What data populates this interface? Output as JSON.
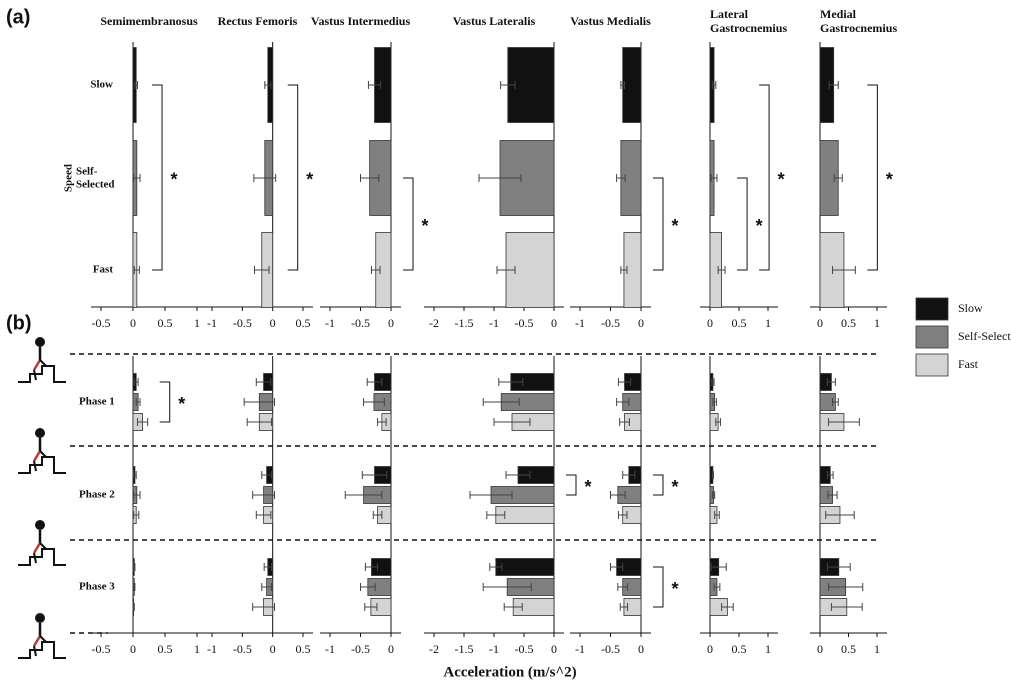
{
  "chart_data": {
    "type": "bar",
    "x_label": "Acceleration (m/s^2)",
    "series": [
      {
        "name": "Slow",
        "color": "#111111"
      },
      {
        "name": "Self-Selected",
        "color": "#808080"
      },
      {
        "name": "Fast",
        "color": "#d4d4d4"
      }
    ],
    "muscles": [
      {
        "name": "Semimembranosus",
        "xlim": [
          -0.5,
          1
        ],
        "xticks": [
          -0.5,
          0,
          0.5,
          1
        ]
      },
      {
        "name": "Rectus Femoris",
        "xlim": [
          -1,
          0.5
        ],
        "xticks": [
          -1,
          -0.5,
          0,
          0.5
        ]
      },
      {
        "name": "Vastus Intermedius",
        "xlim": [
          -1,
          0
        ],
        "xticks": [
          -1,
          -0.5,
          0
        ]
      },
      {
        "name": "Vastus Lateralis",
        "xlim": [
          -2,
          0
        ],
        "xticks": [
          -2,
          -1.5,
          -1,
          -0.5,
          0
        ]
      },
      {
        "name": "Vastus Medialis",
        "xlim": [
          -1,
          0
        ],
        "xticks": [
          -1,
          -0.5,
          0
        ]
      },
      {
        "name": "Lateral Gastrocnemius",
        "xlim": [
          0,
          1
        ],
        "xticks": [
          0,
          0.5,
          1
        ]
      },
      {
        "name": "Medial Gastrocnemius",
        "xlim": [
          0,
          1
        ],
        "xticks": [
          0,
          0.5,
          1
        ]
      }
    ],
    "panel_a": {
      "label": "(a)",
      "y_label": "Speed",
      "categories": [
        "Slow",
        "Self-Selected",
        "Fast"
      ],
      "values": [
        [
          0.05,
          0.06,
          0.06
        ],
        [
          -0.08,
          -0.13,
          -0.18
        ],
        [
          -0.27,
          -0.35,
          -0.25
        ],
        [
          -0.77,
          -0.9,
          -0.8
        ],
        [
          -0.3,
          -0.33,
          -0.28
        ],
        [
          0.07,
          0.07,
          0.2
        ],
        [
          0.24,
          0.32,
          0.42
        ]
      ],
      "errors": [
        [
          0.02,
          0.05,
          0.04
        ],
        [
          0.05,
          0.18,
          0.12
        ],
        [
          0.1,
          0.15,
          0.07
        ],
        [
          0.12,
          0.35,
          0.15
        ],
        [
          0.03,
          0.07,
          0.05
        ],
        [
          0.03,
          0.05,
          0.06
        ],
        [
          0.08,
          0.07,
          0.2
        ]
      ],
      "significance": [
        {
          "muscle": 0,
          "from": 0,
          "to": 2,
          "label": "*"
        },
        {
          "muscle": 1,
          "from": 0,
          "to": 2,
          "label": "*"
        },
        {
          "muscle": 2,
          "from": 1,
          "to": 2,
          "label": "*"
        },
        {
          "muscle": 4,
          "from": 1,
          "to": 2,
          "label": "*"
        },
        {
          "muscle": 5,
          "from": 1,
          "to": 2,
          "label": "*"
        },
        {
          "muscle": 5,
          "from": 0,
          "to": 2,
          "label": "*"
        },
        {
          "muscle": 6,
          "from": 0,
          "to": 2,
          "label": "*"
        }
      ]
    },
    "panel_b": {
      "label": "(b)",
      "phases": [
        "Phase 1",
        "Phase 2",
        "Phase 3"
      ],
      "values": [
        [
          [
            0.05,
            0.08,
            0.15
          ],
          [
            0.03,
            0.06,
            0.05
          ],
          [
            0.02,
            0.02,
            0.01
          ]
        ],
        [
          [
            -0.15,
            -0.22,
            -0.22
          ],
          [
            -0.1,
            -0.15,
            -0.15
          ],
          [
            -0.08,
            -0.1,
            -0.15
          ]
        ],
        [
          [
            -0.27,
            -0.28,
            -0.15
          ],
          [
            -0.27,
            -0.45,
            -0.22
          ],
          [
            -0.32,
            -0.38,
            -0.33
          ]
        ],
        [
          [
            -0.72,
            -0.88,
            -0.7
          ],
          [
            -0.6,
            -1.05,
            -0.97
          ],
          [
            -0.97,
            -0.78,
            -0.68
          ]
        ],
        [
          [
            -0.27,
            -0.3,
            -0.27
          ],
          [
            -0.2,
            -0.38,
            -0.3
          ],
          [
            -0.4,
            -0.3,
            -0.28
          ]
        ],
        [
          [
            0.05,
            0.08,
            0.14
          ],
          [
            0.05,
            0.06,
            0.12
          ],
          [
            0.15,
            0.12,
            0.3
          ]
        ],
        [
          [
            0.2,
            0.27,
            0.42
          ],
          [
            0.18,
            0.22,
            0.35
          ],
          [
            0.33,
            0.45,
            0.47
          ]
        ]
      ],
      "errors": [
        [
          [
            0.03,
            0.03,
            0.08
          ],
          [
            0.02,
            0.05,
            0.04
          ],
          [
            0.01,
            0.01,
            0.01
          ]
        ],
        [
          [
            0.12,
            0.25,
            0.2
          ],
          [
            0.08,
            0.18,
            0.12
          ],
          [
            0.06,
            0.08,
            0.18
          ]
        ],
        [
          [
            0.12,
            0.17,
            0.07
          ],
          [
            0.2,
            0.3,
            0.07
          ],
          [
            0.1,
            0.12,
            0.1
          ]
        ],
        [
          [
            0.2,
            0.3,
            0.3
          ],
          [
            0.2,
            0.35,
            0.15
          ],
          [
            0.1,
            0.4,
            0.15
          ]
        ],
        [
          [
            0.1,
            0.1,
            0.08
          ],
          [
            0.1,
            0.12,
            0.07
          ],
          [
            0.1,
            0.08,
            0.06
          ]
        ],
        [
          [
            0.02,
            0.03,
            0.04
          ],
          [
            0.01,
            0.02,
            0.04
          ],
          [
            0.13,
            0.05,
            0.1
          ]
        ],
        [
          [
            0.07,
            0.05,
            0.27
          ],
          [
            0.05,
            0.08,
            0.25
          ],
          [
            0.2,
            0.3,
            0.27
          ]
        ]
      ],
      "significance": [
        {
          "muscle": 0,
          "phase": 0,
          "from": 0,
          "to": 2,
          "label": "*"
        },
        {
          "muscle": 3,
          "phase": 1,
          "from": 0,
          "to": 1,
          "label": "*"
        },
        {
          "muscle": 4,
          "phase": 1,
          "from": 0,
          "to": 1,
          "label": "*"
        },
        {
          "muscle": 4,
          "phase": 2,
          "from": 0,
          "to": 2,
          "label": "*"
        }
      ]
    }
  }
}
